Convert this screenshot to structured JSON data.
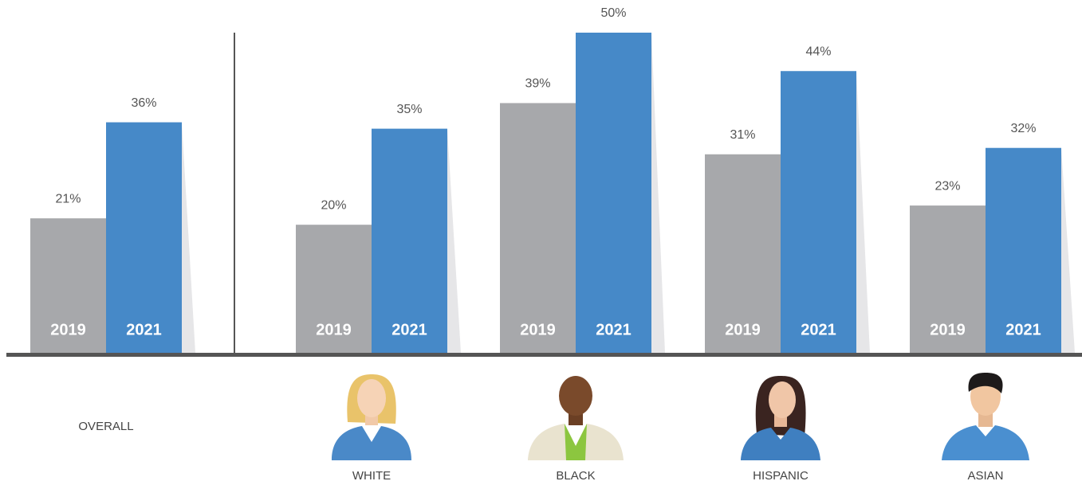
{
  "chart_data": {
    "type": "bar",
    "categories": [
      "OVERALL",
      "WHITE",
      "BLACK",
      "HISPANIC",
      "ASIAN"
    ],
    "series": [
      {
        "name": "2019",
        "color": "#a7a8ab",
        "values": [
          21,
          20,
          39,
          31,
          23
        ],
        "value_labels": [
          "21%",
          "20%",
          "39%",
          "31%",
          "23%"
        ]
      },
      {
        "name": "2021",
        "color": "#4689c8",
        "values": [
          36,
          35,
          50,
          44,
          32
        ],
        "value_labels": [
          "36%",
          "35%",
          "50%",
          "44%",
          "32%"
        ]
      }
    ]
  }
}
